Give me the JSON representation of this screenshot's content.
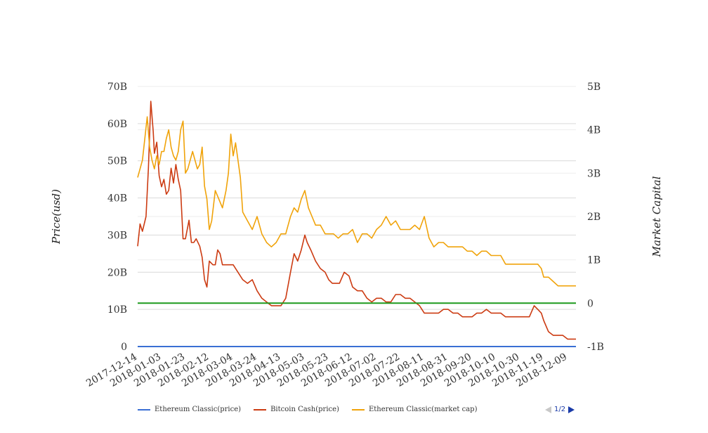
{
  "chart_data": {
    "type": "line",
    "title": "",
    "y_left_label": "Price(usd)",
    "y_right_label": "Market Capital",
    "y_left_ticks": [
      "0",
      "10B",
      "20B",
      "30B",
      "40B",
      "50B",
      "60B",
      "70B"
    ],
    "y_right_ticks": [
      "-1B",
      "0",
      "1B",
      "2B",
      "3B",
      "4B",
      "5B"
    ],
    "y_left_range": [
      0,
      70
    ],
    "y_right_range": [
      -1,
      5
    ],
    "x_ticks": [
      "2017-12-14",
      "2018-01-03",
      "2018-01-23",
      "2018-02-12",
      "2018-03-04",
      "2018-03-24",
      "2018-04-13",
      "2018-05-03",
      "2018-05-23",
      "2018-06-12",
      "2018-07-02",
      "2018-07-22",
      "2018-08-11",
      "2018-08-31",
      "2018-09-20",
      "2018-10-10",
      "2018-10-30",
      "2018-11-19",
      "2018-12-09"
    ],
    "x_range": [
      "2017-12-14",
      "2018-12-16"
    ],
    "grid": true,
    "legend_position": "bottom",
    "series": [
      {
        "name": "Ethereum Classic(price)",
        "axis": "left",
        "color": "#3a6fd4",
        "x": [
          "2017-12-14",
          "2018-12-16"
        ],
        "y": [
          0,
          0
        ]
      },
      {
        "name": "Bitcoin Cash(price)",
        "axis": "left",
        "color": "#cc3b12",
        "x": [
          "2017-12-14",
          "2017-12-16",
          "2017-12-18",
          "2017-12-21",
          "2017-12-23",
          "2017-12-25",
          "2017-12-27",
          "2017-12-28",
          "2017-12-30",
          "2018-01-01",
          "2018-01-03",
          "2018-01-05",
          "2018-01-07",
          "2018-01-09",
          "2018-01-11",
          "2018-01-13",
          "2018-01-15",
          "2018-01-17",
          "2018-01-19",
          "2018-01-21",
          "2018-01-23",
          "2018-01-26",
          "2018-01-28",
          "2018-01-30",
          "2018-02-01",
          "2018-02-04",
          "2018-02-06",
          "2018-02-08",
          "2018-02-10",
          "2018-02-12",
          "2018-02-15",
          "2018-02-17",
          "2018-02-19",
          "2018-02-21",
          "2018-02-23",
          "2018-02-26",
          "2018-02-28",
          "2018-03-04",
          "2018-03-08",
          "2018-03-12",
          "2018-03-16",
          "2018-03-20",
          "2018-03-24",
          "2018-03-28",
          "2018-04-01",
          "2018-04-05",
          "2018-04-09",
          "2018-04-13",
          "2018-04-17",
          "2018-04-21",
          "2018-04-24",
          "2018-04-27",
          "2018-04-30",
          "2018-05-03",
          "2018-05-05",
          "2018-05-08",
          "2018-05-12",
          "2018-05-16",
          "2018-05-20",
          "2018-05-23",
          "2018-05-26",
          "2018-05-29",
          "2018-06-01",
          "2018-06-05",
          "2018-06-09",
          "2018-06-12",
          "2018-06-16",
          "2018-06-20",
          "2018-06-24",
          "2018-06-28",
          "2018-07-02",
          "2018-07-06",
          "2018-07-10",
          "2018-07-14",
          "2018-07-18",
          "2018-07-22",
          "2018-07-26",
          "2018-07-30",
          "2018-08-03",
          "2018-08-07",
          "2018-08-11",
          "2018-08-15",
          "2018-08-19",
          "2018-08-23",
          "2018-08-27",
          "2018-08-31",
          "2018-09-04",
          "2018-09-08",
          "2018-09-12",
          "2018-09-16",
          "2018-09-20",
          "2018-09-24",
          "2018-09-28",
          "2018-10-02",
          "2018-10-06",
          "2018-10-10",
          "2018-10-14",
          "2018-10-18",
          "2018-10-22",
          "2018-10-26",
          "2018-10-30",
          "2018-11-03",
          "2018-11-07",
          "2018-11-11",
          "2018-11-14",
          "2018-11-17",
          "2018-11-19",
          "2018-11-23",
          "2018-11-27",
          "2018-12-01",
          "2018-12-05",
          "2018-12-09",
          "2018-12-13",
          "2018-12-16"
        ],
        "y": [
          27,
          33,
          31,
          35,
          48,
          66,
          58,
          52,
          55,
          46,
          43,
          45,
          41,
          42,
          48,
          44,
          49,
          45,
          42,
          29,
          29,
          34,
          28,
          28,
          29,
          27,
          24,
          18,
          16,
          23,
          22,
          22,
          26,
          25,
          22,
          22,
          22,
          22,
          20,
          18,
          17,
          18,
          15,
          13,
          12,
          11,
          11,
          11,
          13,
          20,
          25,
          23,
          26,
          30,
          28,
          26,
          23,
          21,
          20,
          18,
          17,
          17,
          17,
          20,
          19,
          16,
          15,
          15,
          13,
          12,
          13,
          13,
          12,
          12,
          14,
          14,
          13,
          13,
          12,
          11,
          9,
          9,
          9,
          9,
          10,
          10,
          9,
          9,
          8,
          8,
          8,
          9,
          9,
          10,
          9,
          9,
          9,
          8,
          8,
          8,
          8,
          8,
          8,
          11,
          10,
          9,
          7,
          4,
          3,
          3,
          3,
          2,
          2,
          2
        ]
      },
      {
        "name": "Ethereum Classic(market cap)",
        "axis": "right",
        "color": "#f0a30a",
        "x": [
          "2017-12-14",
          "2017-12-16",
          "2017-12-18",
          "2017-12-20",
          "2017-12-22",
          "2017-12-24",
          "2017-12-26",
          "2017-12-28",
          "2017-12-30",
          "2018-01-01",
          "2018-01-03",
          "2018-01-05",
          "2018-01-07",
          "2018-01-09",
          "2018-01-11",
          "2018-01-13",
          "2018-01-15",
          "2018-01-17",
          "2018-01-19",
          "2018-01-21",
          "2018-01-23",
          "2018-01-25",
          "2018-01-27",
          "2018-01-29",
          "2018-01-31",
          "2018-02-02",
          "2018-02-04",
          "2018-02-06",
          "2018-02-08",
          "2018-02-10",
          "2018-02-12",
          "2018-02-14",
          "2018-02-17",
          "2018-02-20",
          "2018-02-23",
          "2018-02-26",
          "2018-02-28",
          "2018-03-02",
          "2018-03-04",
          "2018-03-06",
          "2018-03-08",
          "2018-03-10",
          "2018-03-12",
          "2018-03-14",
          "2018-03-16",
          "2018-03-20",
          "2018-03-24",
          "2018-03-28",
          "2018-04-01",
          "2018-04-05",
          "2018-04-09",
          "2018-04-13",
          "2018-04-17",
          "2018-04-21",
          "2018-04-24",
          "2018-04-27",
          "2018-04-30",
          "2018-05-03",
          "2018-05-06",
          "2018-05-09",
          "2018-05-12",
          "2018-05-16",
          "2018-05-20",
          "2018-05-23",
          "2018-05-27",
          "2018-05-31",
          "2018-06-04",
          "2018-06-08",
          "2018-06-12",
          "2018-06-16",
          "2018-06-20",
          "2018-06-24",
          "2018-06-28",
          "2018-07-02",
          "2018-07-06",
          "2018-07-10",
          "2018-07-14",
          "2018-07-18",
          "2018-07-22",
          "2018-07-26",
          "2018-07-30",
          "2018-08-03",
          "2018-08-07",
          "2018-08-11",
          "2018-08-15",
          "2018-08-19",
          "2018-08-23",
          "2018-08-27",
          "2018-08-31",
          "2018-09-04",
          "2018-09-08",
          "2018-09-12",
          "2018-09-16",
          "2018-09-20",
          "2018-09-24",
          "2018-09-28",
          "2018-10-02",
          "2018-10-06",
          "2018-10-10",
          "2018-10-14",
          "2018-10-18",
          "2018-10-22",
          "2018-10-26",
          "2018-10-30",
          "2018-11-03",
          "2018-11-07",
          "2018-11-11",
          "2018-11-14",
          "2018-11-17",
          "2018-11-19",
          "2018-11-23",
          "2018-11-27",
          "2018-12-01",
          "2018-12-05",
          "2018-12-09",
          "2018-12-13",
          "2018-12-16"
        ],
        "y": [
          2.9,
          3.1,
          3.3,
          3.8,
          4.3,
          3.6,
          3.3,
          3.1,
          3.4,
          3.2,
          3.5,
          3.5,
          3.8,
          4.0,
          3.6,
          3.4,
          3.3,
          3.5,
          4.0,
          4.2,
          3.0,
          3.1,
          3.3,
          3.5,
          3.3,
          3.1,
          3.2,
          3.6,
          2.7,
          2.4,
          1.7,
          1.9,
          2.6,
          2.4,
          2.2,
          2.6,
          3.0,
          3.9,
          3.4,
          3.7,
          3.3,
          2.9,
          2.1,
          2.0,
          1.9,
          1.7,
          2.0,
          1.6,
          1.4,
          1.3,
          1.4,
          1.6,
          1.6,
          2.0,
          2.2,
          2.1,
          2.4,
          2.6,
          2.2,
          2.0,
          1.8,
          1.8,
          1.6,
          1.6,
          1.6,
          1.5,
          1.6,
          1.6,
          1.7,
          1.4,
          1.6,
          1.6,
          1.5,
          1.7,
          1.8,
          2.0,
          1.8,
          1.9,
          1.7,
          1.7,
          1.7,
          1.8,
          1.7,
          2.0,
          1.5,
          1.3,
          1.4,
          1.4,
          1.3,
          1.3,
          1.3,
          1.3,
          1.2,
          1.2,
          1.1,
          1.2,
          1.2,
          1.1,
          1.1,
          1.1,
          0.9,
          0.9,
          0.9,
          0.9,
          0.9,
          0.9,
          0.9,
          0.9,
          0.8,
          0.6,
          0.6,
          0.5,
          0.4,
          0.4,
          0.4,
          0.4,
          0.4
        ]
      },
      {
        "name": "",
        "axis": "right",
        "color": "#1e9a1e",
        "x": [
          "2017-12-14",
          "2018-12-16"
        ],
        "y": [
          0,
          0
        ]
      }
    ]
  },
  "legend": {
    "items": [
      {
        "label": "Ethereum Classic(price)",
        "color": "#3a6fd4"
      },
      {
        "label": "Bitcoin Cash(price)",
        "color": "#cc3b12"
      },
      {
        "label": "Ethereum Classic(market cap)",
        "color": "#f0a30a"
      }
    ],
    "page_indicator": "1/2"
  }
}
